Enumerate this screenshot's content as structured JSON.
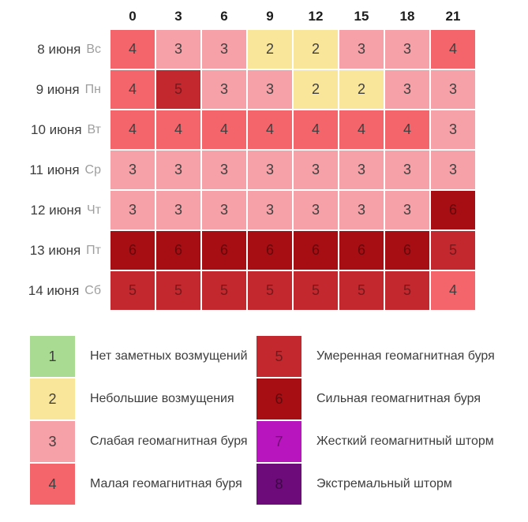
{
  "table": {
    "hour_headers": [
      "0",
      "3",
      "6",
      "9",
      "12",
      "15",
      "18",
      "21"
    ],
    "rows": [
      {
        "date": "8 июня",
        "weekday": "Вс",
        "values": [
          "4",
          "3",
          "3",
          "2",
          "2",
          "3",
          "3",
          "4"
        ]
      },
      {
        "date": "9 июня",
        "weekday": "Пн",
        "values": [
          "4",
          "5",
          "3",
          "3",
          "2",
          "2",
          "3",
          "3"
        ]
      },
      {
        "date": "10 июня",
        "weekday": "Вт",
        "values": [
          "4",
          "4",
          "4",
          "4",
          "4",
          "4",
          "4",
          "3"
        ]
      },
      {
        "date": "11 июня",
        "weekday": "Ср",
        "values": [
          "3",
          "3",
          "3",
          "3",
          "3",
          "3",
          "3",
          "3"
        ]
      },
      {
        "date": "12 июня",
        "weekday": "Чт",
        "values": [
          "3",
          "3",
          "3",
          "3",
          "3",
          "3",
          "3",
          "6"
        ]
      },
      {
        "date": "13 июня",
        "weekday": "Пт",
        "values": [
          "6",
          "6",
          "6",
          "6",
          "6",
          "6",
          "6",
          "5"
        ]
      },
      {
        "date": "14 июня",
        "weekday": "Сб",
        "values": [
          "5",
          "5",
          "5",
          "5",
          "5",
          "5",
          "5",
          "4"
        ]
      }
    ]
  },
  "legend": {
    "items": [
      {
        "level": "1",
        "label": "Нет заметных возмущений"
      },
      {
        "level": "2",
        "label": "Небольшие возмущения"
      },
      {
        "level": "3",
        "label": "Слабая геомагнитная буря"
      },
      {
        "level": "4",
        "label": "Малая геомагнитная буря"
      },
      {
        "level": "5",
        "label": "Умеренная геомагнитная буря"
      },
      {
        "level": "6",
        "label": "Сильная геомагнитная буря"
      },
      {
        "level": "7",
        "label": "Жесткий геомагнитный шторм"
      },
      {
        "level": "8",
        "label": "Экстремальный шторм"
      }
    ]
  },
  "colors": {
    "k1": "#A9DC92",
    "k2": "#F9E69A",
    "k3": "#F5A1A7",
    "k4": "#F4656B",
    "k5": "#C3282E",
    "k6": "#A60E13",
    "k7": "#B815BE",
    "k8": "#6C0B79"
  },
  "chart_data": {
    "type": "heatmap",
    "x_labels": [
      "0",
      "3",
      "6",
      "9",
      "12",
      "15",
      "18",
      "21"
    ],
    "y_labels": [
      "8 июня Вс",
      "9 июня Пн",
      "10 июня Вт",
      "11 июня Ср",
      "12 июня Чт",
      "13 июня Пт",
      "14 июня Сб"
    ],
    "values": [
      [
        4,
        3,
        3,
        2,
        2,
        3,
        3,
        4
      ],
      [
        4,
        5,
        3,
        3,
        2,
        2,
        3,
        3
      ],
      [
        4,
        4,
        4,
        4,
        4,
        4,
        4,
        3
      ],
      [
        3,
        3,
        3,
        3,
        3,
        3,
        3,
        3
      ],
      [
        3,
        3,
        3,
        3,
        3,
        3,
        3,
        6
      ],
      [
        6,
        6,
        6,
        6,
        6,
        6,
        6,
        5
      ],
      [
        5,
        5,
        5,
        5,
        5,
        5,
        5,
        4
      ]
    ],
    "scale": [
      {
        "level": 1,
        "color": "#A9DC92",
        "label": "Нет заметных возмущений"
      },
      {
        "level": 2,
        "color": "#F9E69A",
        "label": "Небольшие возмущения"
      },
      {
        "level": 3,
        "color": "#F5A1A7",
        "label": "Слабая геомагнитная буря"
      },
      {
        "level": 4,
        "color": "#F4656B",
        "label": "Малая геомагнитная буря"
      },
      {
        "level": 5,
        "color": "#C3282E",
        "label": "Умеренная геомагнитная буря"
      },
      {
        "level": 6,
        "color": "#A60E13",
        "label": "Сильная геомагнитная буря"
      },
      {
        "level": 7,
        "color": "#B815BE",
        "label": "Жесткий геомагнитный шторм"
      },
      {
        "level": 8,
        "color": "#6C0B79",
        "label": "Экстремальный шторм"
      }
    ],
    "legend_position": "bottom",
    "grid": false
  }
}
